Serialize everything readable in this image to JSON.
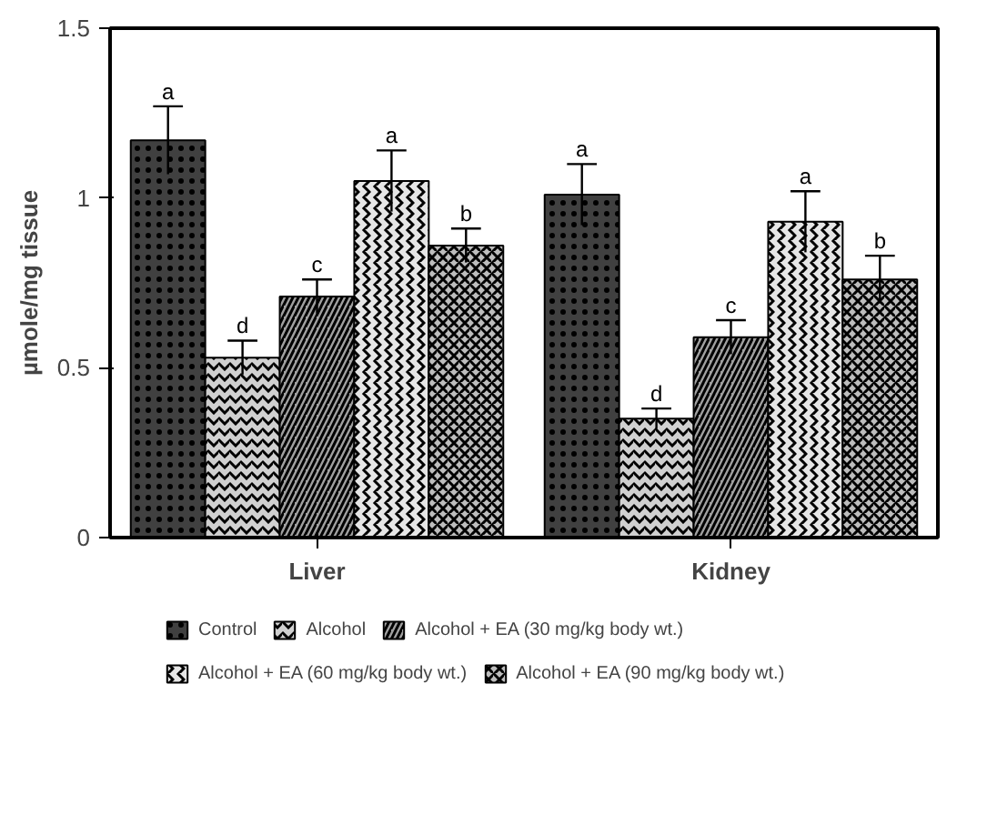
{
  "chart_data": {
    "type": "bar",
    "ylabel": "µmole/mg tissue",
    "categories": [
      "Liver",
      "Kidney"
    ],
    "ylim": [
      0,
      1.5
    ],
    "yticks": [
      0,
      0.5,
      1,
      1.5
    ],
    "grid": false,
    "legend": "bottom",
    "series": [
      {
        "name": "Control",
        "color": "#404040",
        "values": [
          1.17,
          1.01
        ],
        "errors": [
          0.1,
          0.09
        ],
        "value_labels": [
          "a",
          "a"
        ]
      },
      {
        "name": "Alcohol",
        "color": "#d0d0d0",
        "values": [
          0.53,
          0.35
        ],
        "errors": [
          0.05,
          0.03
        ],
        "value_labels": [
          "d",
          "d"
        ]
      },
      {
        "name": "Alcohol + EA (30 mg/kg body wt.)",
        "color": "#a0a0a0",
        "values": [
          0.71,
          0.59
        ],
        "errors": [
          0.05,
          0.05
        ],
        "value_labels": [
          "c",
          "c"
        ]
      },
      {
        "name": "Alcohol + EA (60 mg/kg body wt.)",
        "color": "#e6e6e6",
        "values": [
          1.05,
          0.93
        ],
        "errors": [
          0.09,
          0.09
        ],
        "value_labels": [
          "a",
          "a"
        ]
      },
      {
        "name": "Alcohol + EA (90 mg/kg body wt.)",
        "color": "#bdbdbd",
        "values": [
          0.86,
          0.76
        ],
        "errors": [
          0.05,
          0.07
        ],
        "value_labels": [
          "b",
          "b"
        ]
      }
    ]
  }
}
